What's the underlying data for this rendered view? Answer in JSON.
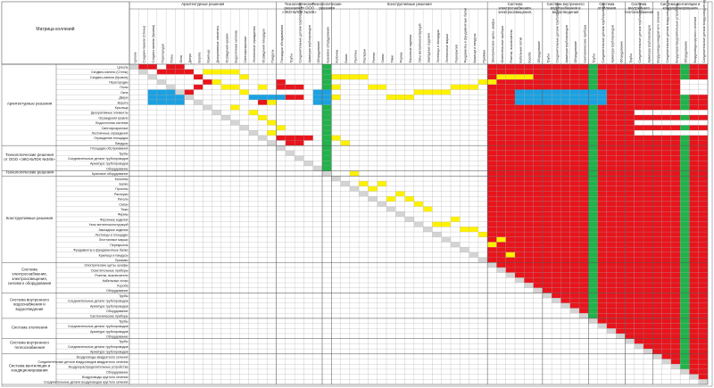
{
  "chart_data": {
    "type": "heatmap",
    "title": "Матрица коллизий",
    "palette": {
      "red": "#e8141c",
      "yellow": "#fff200",
      "blue": "#1ba1e2",
      "green": "#1fb34a",
      "gray": "#d4d4d4",
      "white": "#ffffff",
      "grid": "#9a9a9a"
    },
    "groups": [
      {
        "label": "Архитектурные решения",
        "items": [
          "Цоколь",
          "Сэндвич-панели (Стены)",
          "Сэндвич-панели (Кровля)",
          "Перегородки",
          "Полы",
          "Окна",
          "Двери",
          "Ворота",
          "Крыльца",
          "Декоративные элементы",
          "Ограждения кровли",
          "Водосточная система",
          "Светопрозрачные",
          "Лестничные ограждения",
          "Ограждения площадок",
          "Пандусы"
        ]
      },
      {
        "label": "Технологические решения от ООО «ЭКО-БЛОК №345»",
        "items": [
          "Площадки обслуживания",
          "Трубы",
          "Соединительные детали трубопроводов",
          "Арматура трубопроводов",
          "Оборудование"
        ]
      },
      {
        "label": "Технологические решения",
        "items": [
          "Крановое оборудование"
        ]
      },
      {
        "label": "Конструктивные решения",
        "items": [
          "Колонны",
          "Балки",
          "Прогоны",
          "Распорки",
          "Ригели",
          "Связи",
          "Тяжи",
          "Фермы",
          "Фасонные изделия",
          "Узлы металлоконструкций",
          "Закладные изделия",
          "Лестницы и площадки",
          "Лестничные марши",
          "Перекрытия",
          "Фундаменты и фундаментные балки",
          "Крыльца и пандусы",
          "Приямки"
        ]
      },
      {
        "label": "Система электроснабжения, электроосвещения, силового оборудования",
        "items": [
          "Электрические щиты, шкафы",
          "Осветительные приборы",
          "Розетки, выключатели",
          "Кабельные лотки",
          "Короба",
          "Оборудование"
        ]
      },
      {
        "label": "Система внутреннего водоснабжения и водоотведения",
        "items": [
          "Трубы",
          "Соединительные детали трубопроводов",
          "Арматура трубопроводов",
          "Оборудование",
          "Сантехнические приборы"
        ]
      },
      {
        "label": "Система отопления",
        "items": [
          "Трубы",
          "Соединительные детали трубопроводов",
          "Арматура трубопроводов",
          "Оборудование"
        ]
      },
      {
        "label": "Система внутреннего теплоснабжения",
        "items": [
          "Трубы",
          "Соединительные детали трубопроводов",
          "Арматура трубопроводов"
        ]
      },
      {
        "label": "Система вентиляции и кондиционирования",
        "items": [
          "Воздуховоды квадратного сечения",
          "Соединительные детали воздуховодов квадратного сечения",
          "Воздухораспределительные устройства",
          "Оборудование",
          "Воздуховоды круглого сечения",
          "Соединительные детали воздуховодов круглого сечения"
        ]
      }
    ],
    "cells": {
      "red": [
        [
          1,
          0
        ],
        [
          2,
          0
        ],
        [
          4,
          0
        ],
        [
          5,
          0
        ],
        [
          3,
          1
        ],
        [
          4,
          1
        ],
        [
          5,
          1
        ],
        [
          6,
          1
        ],
        [
          7,
          2
        ],
        [
          8,
          3
        ],
        [
          7,
          4
        ],
        [
          6,
          5
        ],
        [
          14,
          7
        ],
        [
          16,
          3
        ],
        [
          16,
          4
        ],
        [
          17,
          4
        ],
        [
          18,
          4
        ],
        [
          16,
          6
        ],
        [
          17,
          6
        ],
        [
          18,
          6
        ],
        [
          16,
          14
        ],
        [
          17,
          14
        ],
        [
          18,
          14
        ],
        [
          19,
          14
        ],
        [
          17,
          15
        ],
        [
          18,
          15
        ]
      ],
      "yellow": [
        [
          8,
          1
        ],
        [
          9,
          1
        ],
        [
          10,
          1
        ],
        [
          11,
          1
        ],
        [
          12,
          2
        ],
        [
          9,
          3
        ],
        [
          10,
          4
        ],
        [
          11,
          4
        ],
        [
          14,
          4
        ],
        [
          12,
          5
        ],
        [
          13,
          6
        ],
        [
          15,
          7
        ],
        [
          11,
          8
        ],
        [
          13,
          9
        ],
        [
          14,
          10
        ],
        [
          15,
          11
        ],
        [
          16,
          12
        ],
        [
          13,
          13
        ],
        [
          15,
          13
        ],
        [
          22,
          2
        ],
        [
          23,
          2
        ],
        [
          24,
          2
        ],
        [
          25,
          2
        ],
        [
          22,
          4
        ],
        [
          26,
          4
        ],
        [
          27,
          4
        ],
        [
          22,
          6
        ],
        [
          28,
          6
        ],
        [
          29,
          6
        ],
        [
          30,
          6
        ],
        [
          31,
          5
        ],
        [
          32,
          5
        ],
        [
          33,
          5
        ],
        [
          34,
          5
        ],
        [
          35,
          4
        ],
        [
          36,
          4
        ],
        [
          37,
          4
        ],
        [
          38,
          3
        ],
        [
          39,
          3
        ],
        [
          40,
          2
        ],
        [
          41,
          2
        ],
        [
          42,
          2
        ],
        [
          43,
          2
        ],
        [
          22,
          14
        ],
        [
          23,
          15
        ],
        [
          24,
          21
        ],
        [
          25,
          23
        ],
        [
          26,
          24
        ],
        [
          27,
          23
        ],
        [
          28,
          26
        ],
        [
          29,
          25
        ],
        [
          30,
          26
        ],
        [
          31,
          27
        ],
        [
          32,
          28
        ],
        [
          33,
          31
        ],
        [
          34,
          31
        ],
        [
          35,
          30
        ],
        [
          36,
          32
        ],
        [
          37,
          32
        ],
        [
          38,
          33
        ],
        [
          39,
          35
        ],
        [
          40,
          34
        ],
        [
          41,
          37
        ]
      ],
      "blue": [
        [
          2,
          5
        ],
        [
          2,
          6
        ],
        [
          2,
          7
        ],
        [
          3,
          5
        ],
        [
          3,
          6
        ],
        [
          3,
          7
        ],
        [
          4,
          5
        ],
        [
          4,
          6
        ],
        [
          4,
          7
        ],
        [
          5,
          5
        ],
        [
          5,
          6
        ],
        [
          5,
          7
        ],
        [
          13,
          6
        ],
        [
          14,
          6
        ],
        [
          15,
          6
        ],
        [
          16,
          6
        ],
        [
          20,
          5
        ],
        [
          20,
          6
        ],
        [
          20,
          7
        ],
        [
          21,
          5
        ],
        [
          21,
          6
        ],
        [
          21,
          7
        ],
        [
          42,
          5
        ],
        [
          42,
          6
        ],
        [
          42,
          7
        ],
        [
          43,
          5
        ],
        [
          43,
          6
        ],
        [
          43,
          7
        ],
        [
          44,
          5
        ],
        [
          44,
          6
        ],
        [
          44,
          7
        ],
        [
          45,
          5
        ],
        [
          45,
          6
        ],
        [
          45,
          7
        ],
        [
          46,
          5
        ],
        [
          46,
          6
        ],
        [
          46,
          7
        ],
        [
          47,
          5
        ],
        [
          47,
          6
        ],
        [
          47,
          7
        ],
        [
          48,
          5
        ],
        [
          48,
          6
        ],
        [
          48,
          7
        ],
        [
          49,
          5
        ],
        [
          49,
          6
        ],
        [
          49,
          7
        ],
        [
          50,
          5
        ],
        [
          50,
          6
        ],
        [
          50,
          7
        ],
        [
          51,
          5
        ],
        [
          51,
          6
        ],
        [
          51,
          7
        ]
      ],
      "white": [
        [
          60,
          3
        ],
        [
          61,
          3
        ],
        [
          62,
          3
        ],
        [
          63,
          3
        ],
        [
          60,
          4
        ],
        [
          61,
          4
        ],
        [
          62,
          4
        ],
        [
          63,
          4
        ],
        [
          64,
          4
        ],
        [
          60,
          5
        ],
        [
          61,
          5
        ],
        [
          62,
          5
        ],
        [
          63,
          5
        ],
        [
          55,
          9
        ],
        [
          56,
          9
        ],
        [
          57,
          9
        ],
        [
          58,
          9
        ],
        [
          59,
          9
        ],
        [
          60,
          9
        ],
        [
          61,
          9
        ],
        [
          62,
          9
        ],
        [
          63,
          9
        ],
        [
          64,
          9
        ],
        [
          65,
          9
        ],
        [
          66,
          9
        ],
        [
          67,
          9
        ],
        [
          68,
          9
        ],
        [
          69,
          9
        ],
        [
          55,
          11
        ],
        [
          56,
          11
        ],
        [
          57,
          11
        ],
        [
          58,
          11
        ],
        [
          59,
          11
        ],
        [
          60,
          11
        ],
        [
          61,
          11
        ],
        [
          62,
          11
        ],
        [
          63,
          11
        ],
        [
          64,
          11
        ],
        [
          65,
          11
        ],
        [
          66,
          11
        ],
        [
          67,
          11
        ],
        [
          68,
          11
        ],
        [
          69,
          11
        ],
        [
          55,
          13
        ],
        [
          56,
          13
        ],
        [
          57,
          13
        ],
        [
          58,
          13
        ],
        [
          59,
          13
        ],
        [
          60,
          13
        ],
        [
          61,
          13
        ],
        [
          62,
          13
        ],
        [
          63,
          13
        ],
        [
          64,
          13
        ],
        [
          65,
          13
        ],
        [
          66,
          13
        ],
        [
          67,
          13
        ],
        [
          68,
          13
        ],
        [
          69,
          13
        ],
        [
          64,
          21
        ],
        [
          64,
          22
        ],
        [
          65,
          21
        ],
        [
          65,
          22
        ],
        [
          66,
          21
        ],
        [
          66,
          22
        ],
        [
          67,
          21
        ],
        [
          67,
          22
        ],
        [
          68,
          21
        ],
        [
          68,
          22
        ],
        [
          69,
          21
        ],
        [
          69,
          22
        ]
      ],
      "green_rows": [],
      "green_cols": [
        21,
        50,
        60,
        66,
        71
      ]
    },
    "rule": "upper triangle tinted red from the electrical system column onward; lower triangle blank; diagonal gray"
  }
}
